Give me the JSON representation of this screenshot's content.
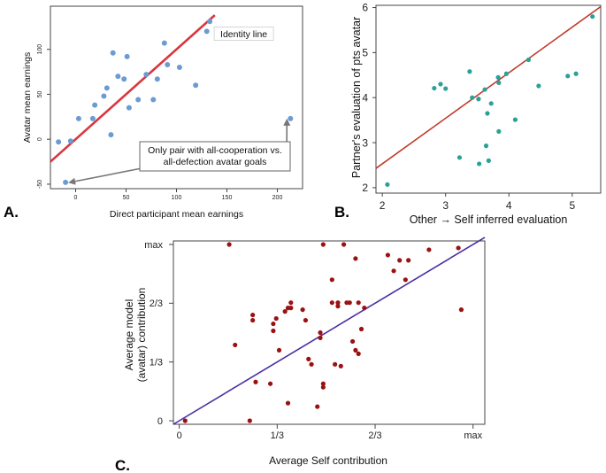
{
  "chart_data": [
    {
      "type": "scatter",
      "panel_label": "A.",
      "xlabel": "Direct participant mean earnings",
      "ylabel": "Avatar mean earnings",
      "xlim": [
        -25,
        225
      ],
      "ylim": [
        -55,
        148
      ],
      "xticks": [
        {
          "v": 0,
          "t": "0"
        },
        {
          "v": 50,
          "t": "50"
        },
        {
          "v": 100,
          "t": "100"
        },
        {
          "v": 150,
          "t": "150"
        },
        {
          "v": 200,
          "t": "200"
        }
      ],
      "yticks": [
        {
          "v": -50,
          "t": "-50"
        },
        {
          "v": 0,
          "t": "0"
        },
        {
          "v": 50,
          "t": "50"
        },
        {
          "v": 100,
          "t": "100"
        }
      ],
      "point_color": "#6b9bd2",
      "line_color": "#d9363e",
      "line": {
        "type": "identity",
        "from": [
          -25,
          -25
        ],
        "to": [
          138,
          138
        ]
      },
      "line_label": "Identity line",
      "line_label_anchor": [
        140,
        115
      ],
      "annotation": "Only pair with all-cooperation vs. all-defection avatar goals",
      "annotation_lines": [
        "Only pair with all-cooperation vs.",
        "all-defection avatar goals"
      ],
      "annotation_points": [
        [
          -10,
          -48
        ],
        [
          213,
          23
        ]
      ],
      "points": [
        [
          -17,
          -3
        ],
        [
          -5,
          -2
        ],
        [
          3,
          23
        ],
        [
          -10,
          -48
        ],
        [
          17,
          23
        ],
        [
          19,
          38
        ],
        [
          28,
          48
        ],
        [
          31,
          57
        ],
        [
          35,
          5
        ],
        [
          37,
          96
        ],
        [
          42,
          70
        ],
        [
          48,
          67
        ],
        [
          51,
          92
        ],
        [
          53,
          35
        ],
        [
          62,
          44
        ],
        [
          70,
          72
        ],
        [
          77,
          44
        ],
        [
          81,
          67
        ],
        [
          88,
          107
        ],
        [
          91,
          83
        ],
        [
          103,
          80
        ],
        [
          119,
          60
        ],
        [
          130,
          120
        ],
        [
          133,
          131
        ],
        [
          213,
          23
        ]
      ]
    },
    {
      "type": "scatter",
      "panel_label": "B.",
      "xlabel": "Other → Self inferred evaluation",
      "ylabel": "Partner's evaluation of pts avatar",
      "xlim": [
        1.9,
        5.45
      ],
      "ylim": [
        1.88,
        6.05
      ],
      "xticks": [
        {
          "v": 2,
          "t": "2"
        },
        {
          "v": 3,
          "t": "3"
        },
        {
          "v": 4,
          "t": "4"
        },
        {
          "v": 5,
          "t": "5"
        }
      ],
      "yticks": [
        {
          "v": 2,
          "t": "2"
        },
        {
          "v": 3,
          "t": "3"
        },
        {
          "v": 4,
          "t": "4"
        },
        {
          "v": 5,
          "t": "5"
        },
        {
          "v": 6,
          "t": "6"
        }
      ],
      "point_color": "#2aa198",
      "line_color": "#c0392b",
      "line": {
        "type": "fit",
        "from": [
          1.9,
          2.43
        ],
        "to": [
          5.45,
          6.02
        ]
      },
      "points": [
        [
          2.08,
          2.07
        ],
        [
          2.82,
          4.21
        ],
        [
          2.92,
          4.3
        ],
        [
          3.0,
          4.2
        ],
        [
          3.22,
          2.67
        ],
        [
          3.38,
          4.58
        ],
        [
          3.42,
          4.0
        ],
        [
          3.52,
          3.97
        ],
        [
          3.53,
          2.53
        ],
        [
          3.62,
          4.18
        ],
        [
          3.64,
          2.93
        ],
        [
          3.66,
          3.65
        ],
        [
          3.68,
          2.6
        ],
        [
          3.72,
          3.87
        ],
        [
          3.83,
          4.45
        ],
        [
          3.84,
          4.33
        ],
        [
          3.84,
          3.25
        ],
        [
          3.96,
          4.53
        ],
        [
          4.1,
          3.51
        ],
        [
          4.31,
          4.84
        ],
        [
          4.47,
          4.26
        ],
        [
          4.93,
          4.48
        ],
        [
          5.06,
          4.53
        ],
        [
          5.32,
          5.8
        ]
      ]
    },
    {
      "type": "scatter",
      "panel_label": "C.",
      "xlabel": "Average Self contribution",
      "ylabel": "Average model (avatar) contribution",
      "ylabel_lines": [
        "Average model",
        "(avatar) contribution"
      ],
      "xlim": [
        -0.02,
        1.04
      ],
      "ylim": [
        -0.02,
        1.02
      ],
      "xticks": [
        {
          "v": 0,
          "t": "0"
        },
        {
          "v": 0.3333,
          "t": "1/3"
        },
        {
          "v": 0.6667,
          "t": "2/3"
        },
        {
          "v": 1,
          "t": "max"
        }
      ],
      "yticks": [
        {
          "v": 0,
          "t": "0"
        },
        {
          "v": 0.3333,
          "t": "1/3"
        },
        {
          "v": 0.6667,
          "t": "2/3"
        },
        {
          "v": 1,
          "t": "max"
        }
      ],
      "point_color": "#9b1111",
      "line_color": "#4b2ea3",
      "line": {
        "type": "identity",
        "from": [
          -0.02,
          -0.02
        ],
        "to": [
          1.04,
          1.04
        ]
      },
      "points": [
        [
          0.02,
          0.0
        ],
        [
          0.17,
          1.0
        ],
        [
          0.19,
          0.43
        ],
        [
          0.24,
          0.0
        ],
        [
          0.25,
          0.6
        ],
        [
          0.25,
          0.57
        ],
        [
          0.26,
          0.22
        ],
        [
          0.31,
          0.21
        ],
        [
          0.32,
          0.51
        ],
        [
          0.32,
          0.55
        ],
        [
          0.33,
          0.58
        ],
        [
          0.34,
          0.4
        ],
        [
          0.36,
          0.62
        ],
        [
          0.37,
          0.64
        ],
        [
          0.37,
          0.1
        ],
        [
          0.38,
          0.64
        ],
        [
          0.38,
          0.67
        ],
        [
          0.42,
          0.63
        ],
        [
          0.43,
          0.57
        ],
        [
          0.44,
          0.35
        ],
        [
          0.45,
          0.32
        ],
        [
          0.47,
          0.08
        ],
        [
          0.48,
          0.5
        ],
        [
          0.48,
          0.47
        ],
        [
          0.49,
          0.21
        ],
        [
          0.49,
          0.19
        ],
        [
          0.49,
          1.0
        ],
        [
          0.52,
          0.8
        ],
        [
          0.52,
          0.67
        ],
        [
          0.53,
          0.32
        ],
        [
          0.54,
          0.65
        ],
        [
          0.54,
          0.67
        ],
        [
          0.55,
          0.31
        ],
        [
          0.56,
          1.0
        ],
        [
          0.57,
          0.67
        ],
        [
          0.58,
          0.67
        ],
        [
          0.59,
          0.45
        ],
        [
          0.6,
          0.92
        ],
        [
          0.6,
          0.4
        ],
        [
          0.61,
          0.38
        ],
        [
          0.61,
          0.67
        ],
        [
          0.62,
          0.52
        ],
        [
          0.63,
          0.64
        ],
        [
          0.71,
          0.94
        ],
        [
          0.73,
          0.85
        ],
        [
          0.75,
          0.91
        ],
        [
          0.77,
          0.8
        ],
        [
          0.78,
          0.91
        ],
        [
          0.85,
          0.97
        ],
        [
          0.95,
          0.98
        ],
        [
          0.96,
          0.63
        ]
      ]
    }
  ]
}
